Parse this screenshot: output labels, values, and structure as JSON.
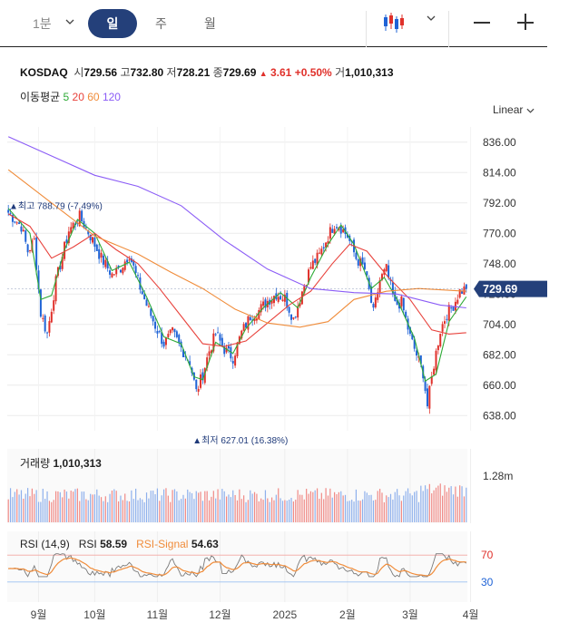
{
  "toolbar": {
    "period_dropdown": "1분",
    "periods": [
      "일",
      "주",
      "월"
    ],
    "active_period": "일"
  },
  "quote": {
    "symbol": "KOSDAQ",
    "open_label": "시",
    "open": "729.56",
    "high_label": "고",
    "high": "732.80",
    "low_label": "저",
    "low": "728.21",
    "close_label": "종",
    "close": "729.69",
    "change_arrow": "▲",
    "change": "3.61",
    "change_pct": "+0.50%",
    "volume_label": "거",
    "volume": "1,010,313"
  },
  "ma_legend": {
    "label": "이동평균",
    "periods": [
      {
        "value": "5",
        "color": "#2eaa36"
      },
      {
        "value": "20",
        "color": "#e8423c"
      },
      {
        "value": "60",
        "color": "#f08c3a"
      },
      {
        "value": "120",
        "color": "#8b5cf6"
      }
    ]
  },
  "scale_mode": "Linear",
  "colors": {
    "up": "#e0302a",
    "down": "#1f63d6",
    "accent": "#24407a"
  },
  "chart_data": [
    {
      "type": "candlestick",
      "title": "KOSDAQ",
      "y_ticks": [
        836.0,
        814.0,
        792.0,
        770.0,
        748.0,
        726.0,
        704.0,
        682.0,
        660.0,
        638.0
      ],
      "ylim": [
        627,
        847
      ],
      "x_ticks": [
        "9월",
        "10월",
        "11월",
        "12월",
        "2025",
        "2월",
        "3월",
        "4월"
      ],
      "current_price_label": "729.69",
      "high_annotation": "최고 788.79 (-7.49%)",
      "low_annotation": "최저 627.01 (16.38%)",
      "close_keypoints": [
        [
          0,
          785
        ],
        [
          6,
          775
        ],
        [
          9,
          757
        ],
        [
          12,
          765
        ],
        [
          15,
          712
        ],
        [
          18,
          697
        ],
        [
          22,
          735
        ],
        [
          28,
          772
        ],
        [
          33,
          782
        ],
        [
          38,
          768
        ],
        [
          43,
          752
        ],
        [
          48,
          740
        ],
        [
          52,
          745
        ],
        [
          56,
          755
        ],
        [
          60,
          735
        ],
        [
          64,
          718
        ],
        [
          68,
          703
        ],
        [
          72,
          690
        ],
        [
          76,
          698
        ],
        [
          80,
          687
        ],
        [
          84,
          677
        ],
        [
          87,
          655
        ],
        [
          90,
          668
        ],
        [
          93,
          685
        ],
        [
          96,
          697
        ],
        [
          100,
          686
        ],
        [
          104,
          680
        ],
        [
          108,
          698
        ],
        [
          112,
          710
        ],
        [
          116,
          714
        ],
        [
          120,
          721
        ],
        [
          124,
          726
        ],
        [
          128,
          723
        ],
        [
          132,
          708
        ],
        [
          136,
          728
        ],
        [
          140,
          746
        ],
        [
          144,
          754
        ],
        [
          148,
          768
        ],
        [
          151,
          777
        ],
        [
          153,
          776
        ],
        [
          157,
          768
        ],
        [
          161,
          752
        ],
        [
          165,
          744
        ],
        [
          169,
          712
        ],
        [
          172,
          736
        ],
        [
          175,
          744
        ],
        [
          179,
          718
        ],
        [
          182,
          720
        ],
        [
          186,
          695
        ],
        [
          189,
          682
        ],
        [
          192,
          669
        ],
        [
          194,
          645
        ],
        [
          197,
          675
        ],
        [
          200,
          700
        ],
        [
          203,
          712
        ],
        [
          206,
          718
        ],
        [
          209,
          728
        ],
        [
          212,
          730
        ]
      ],
      "ma_series": [
        {
          "name": "5",
          "color": "#2eaa36",
          "points": [
            [
              0,
              788
            ],
            [
              10,
              770
            ],
            [
              15,
              722
            ],
            [
              20,
              725
            ],
            [
              26,
              758
            ],
            [
              32,
              780
            ],
            [
              40,
              770
            ],
            [
              48,
              743
            ],
            [
              56,
              749
            ],
            [
              64,
              724
            ],
            [
              72,
              695
            ],
            [
              80,
              690
            ],
            [
              86,
              666
            ],
            [
              90,
              664
            ],
            [
              96,
              691
            ],
            [
              104,
              683
            ],
            [
              110,
              701
            ],
            [
              118,
              716
            ],
            [
              126,
              727
            ],
            [
              134,
              716
            ],
            [
              140,
              738
            ],
            [
              148,
              762
            ],
            [
              154,
              776
            ],
            [
              160,
              762
            ],
            [
              168,
              730
            ],
            [
              174,
              738
            ],
            [
              180,
              722
            ],
            [
              188,
              694
            ],
            [
              193,
              663
            ],
            [
              198,
              668
            ],
            [
              204,
              706
            ],
            [
              212,
              724
            ]
          ]
        },
        {
          "name": "20",
          "color": "#e8423c",
          "points": [
            [
              0,
              784
            ],
            [
              10,
              775
            ],
            [
              20,
              752
            ],
            [
              30,
              760
            ],
            [
              40,
              770
            ],
            [
              50,
              758
            ],
            [
              60,
              748
            ],
            [
              70,
              730
            ],
            [
              80,
              710
            ],
            [
              90,
              690
            ],
            [
              100,
              688
            ],
            [
              110,
              692
            ],
            [
              120,
              705
            ],
            [
              130,
              718
            ],
            [
              140,
              728
            ],
            [
              150,
              748
            ],
            [
              158,
              762
            ],
            [
              166,
              757
            ],
            [
              176,
              738
            ],
            [
              186,
              722
            ],
            [
              196,
              700
            ],
            [
              204,
              697
            ],
            [
              212,
              698
            ]
          ]
        },
        {
          "name": "60",
          "color": "#f08c3a",
          "points": [
            [
              0,
              816
            ],
            [
              20,
              792
            ],
            [
              40,
              768
            ],
            [
              60,
              755
            ],
            [
              75,
              742
            ],
            [
              90,
              730
            ],
            [
              105,
              715
            ],
            [
              120,
              705
            ],
            [
              135,
              702
            ],
            [
              148,
              706
            ],
            [
              160,
              722
            ],
            [
              175,
              728
            ],
            [
              190,
              730
            ],
            [
              212,
              728
            ]
          ]
        },
        {
          "name": "120",
          "color": "#8b5cf6",
          "points": [
            [
              0,
              840
            ],
            [
              20,
              826
            ],
            [
              40,
              812
            ],
            [
              60,
              804
            ],
            [
              80,
              790
            ],
            [
              100,
              765
            ],
            [
              120,
              744
            ],
            [
              140,
              730
            ],
            [
              160,
              727
            ],
            [
              180,
              726
            ],
            [
              200,
              718
            ],
            [
              212,
              716
            ]
          ]
        }
      ]
    },
    {
      "type": "bar",
      "title": "거래량",
      "value_label": "1,010,313",
      "y_ticks_label": "1.28m"
    },
    {
      "type": "line",
      "title": "RSI (14,9)",
      "series": [
        {
          "name": "RSI",
          "value": "58.59",
          "color": "#7a7a7a"
        },
        {
          "name": "RSI-Signal",
          "value": "54.63",
          "color": "#f08c3a"
        }
      ],
      "y_ticks": [
        70,
        30
      ],
      "ylim": [
        0,
        100
      ]
    }
  ]
}
